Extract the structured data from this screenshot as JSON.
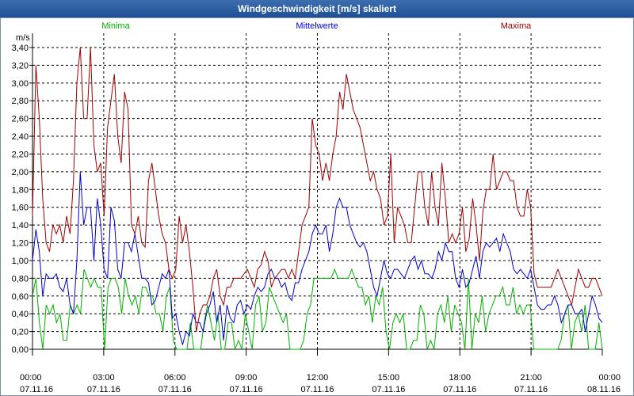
{
  "window": {
    "title": "Windgeschwindigkeit [m/s] skaliert"
  },
  "colors": {
    "minima": "#00b000",
    "mittelwerte": "#0000cc",
    "maxima": "#a00000",
    "grid": "#000000"
  },
  "chart_data": {
    "type": "line",
    "title": "Windgeschwindigkeit [m/s] skaliert",
    "ylabel": "m/s",
    "xlabel": "",
    "ylim": [
      0,
      3.4
    ],
    "xlim": [
      0,
      24
    ],
    "y_ticks": [
      "0,00",
      "0,20",
      "0,40",
      "0,60",
      "0,80",
      "1,00",
      "1,20",
      "1,40",
      "1,60",
      "1,80",
      "2,00",
      "2,20",
      "2,40",
      "2,60",
      "2,80",
      "3,00",
      "3,20",
      "3,40"
    ],
    "x_ticks": [
      {
        "time": "00:00",
        "date": "07.11.16"
      },
      {
        "time": "03:00",
        "date": "07.11.16"
      },
      {
        "time": "06:00",
        "date": "07.11.16"
      },
      {
        "time": "09:00",
        "date": "07.11.16"
      },
      {
        "time": "12:00",
        "date": "07.11.16"
      },
      {
        "time": "15:00",
        "date": "07.11.16"
      },
      {
        "time": "18:00",
        "date": "07.11.16"
      },
      {
        "time": "21:00",
        "date": "07.11.16"
      },
      {
        "time": "00:00",
        "date": "08.11.16"
      }
    ],
    "legend": [
      "Minima",
      "Mittelwerte",
      "Maxima"
    ],
    "series": [
      {
        "name": "Minima",
        "values": [
          0.6,
          0.8,
          0.3,
          0.0,
          0.5,
          0.4,
          0.5,
          0.3,
          0.4,
          0.1,
          0.1,
          0.5,
          0.4,
          0.5,
          0.4,
          0.9,
          0.8,
          0.7,
          0.8,
          0.7,
          0.7,
          0.0,
          0.7,
          0.8,
          0.8,
          0.7,
          0.4,
          0.8,
          0.6,
          0.5,
          0.6,
          0.4,
          0.7,
          0.7,
          0.6,
          0.6,
          0.4,
          0.4,
          0.2,
          0.6,
          0.7,
          0.1,
          0.0,
          0.0,
          0.0,
          0.0,
          0.3,
          0.0,
          0.0,
          0.0,
          0.3,
          0.5,
          0.3,
          0.1,
          0.4,
          0.0,
          0.0,
          0.3,
          0.3,
          0.0,
          0.1,
          0.0,
          0.4,
          0.2,
          0.0,
          0.5,
          0.6,
          0.2,
          0.3,
          0.7,
          0.6,
          0.5,
          0.4,
          0.3,
          0.4,
          0.0,
          0.0,
          0.0,
          0.0,
          0.1,
          0.4,
          0.5,
          0.8,
          0.8,
          0.8,
          0.8,
          0.8,
          0.8,
          0.9,
          0.8,
          0.8,
          0.8,
          0.8,
          0.9,
          0.8,
          0.7,
          0.7,
          0.5,
          0.6,
          0.3,
          0.6,
          0.5,
          0.7,
          0.2,
          0.0,
          0.3,
          0.4,
          0.3,
          0.4,
          0.0,
          0.0,
          0.1,
          0.1,
          0.5,
          0.4,
          0.0,
          0.1,
          0.0,
          0.4,
          0.5,
          0.3,
          0.6,
          0.2,
          0.5,
          0.4,
          0.3,
          0.0,
          0.8,
          0.0,
          0.4,
          0.3,
          0.6,
          0.2,
          0.4,
          0.5,
          0.6,
          0.6,
          0.7,
          0.5,
          0.5,
          0.7,
          0.4,
          0.5,
          0.4,
          0.5,
          0.5,
          0.0,
          0.0,
          0.0,
          0.0,
          0.0,
          0.0,
          0.0,
          0.0,
          0.1,
          0.4,
          0.5,
          0.0,
          0.3,
          0.4,
          0.2,
          0.5,
          0.0,
          0.0,
          0.0,
          0.3,
          0.0
        ]
      },
      {
        "name": "Mittelwerte",
        "values": [
          1.0,
          1.35,
          1.1,
          0.6,
          0.85,
          0.8,
          0.8,
          0.85,
          0.7,
          0.65,
          0.8,
          0.5,
          0.4,
          1.0,
          2.0,
          1.4,
          1.6,
          1.6,
          1.0,
          1.7,
          1.4,
          0.9,
          0.8,
          1.6,
          1.45,
          0.9,
          0.8,
          1.2,
          1.2,
          1.1,
          1.3,
          1.05,
          0.8,
          0.8,
          0.75,
          0.5,
          0.55,
          0.7,
          0.85,
          0.8,
          0.9,
          0.35,
          0.4,
          0.2,
          0.05,
          0.2,
          0.15,
          0.4,
          0.3,
          0.3,
          0.2,
          0.4,
          0.5,
          0.65,
          0.3,
          0.5,
          0.1,
          0.5,
          0.35,
          0.3,
          0.5,
          0.55,
          0.4,
          0.5,
          0.45,
          0.6,
          0.7,
          0.65,
          0.7,
          0.85,
          0.9,
          0.8,
          0.8,
          0.7,
          0.75,
          0.6,
          0.55,
          0.75,
          0.75,
          0.9,
          1.0,
          1.1,
          1.3,
          1.4,
          1.3,
          1.3,
          1.4,
          1.1,
          1.3,
          1.6,
          1.7,
          1.6,
          1.6,
          1.4,
          1.3,
          1.2,
          1.15,
          1.2,
          1.1,
          0.9,
          0.7,
          0.6,
          0.8,
          1.0,
          0.85,
          0.8,
          0.9,
          0.9,
          0.85,
          0.8,
          0.9,
          1.0,
          1.05,
          0.9,
          1.0,
          0.85,
          0.85,
          0.8,
          0.9,
          1.1,
          1.0,
          1.2,
          1.1,
          1.1,
          0.8,
          0.7,
          0.9,
          0.7,
          0.75,
          0.9,
          1.05,
          0.8,
          1.1,
          1.2,
          1.15,
          1.2,
          1.25,
          1.1,
          1.3,
          1.2,
          1.1,
          0.9,
          0.85,
          0.9,
          0.85,
          0.8,
          0.9,
          0.7,
          0.5,
          0.45,
          0.45,
          0.5,
          0.5,
          0.6,
          0.5,
          0.3,
          0.4,
          0.5,
          0.5,
          0.4,
          0.4,
          0.45,
          0.2,
          0.4,
          0.6,
          0.5,
          0.35,
          0.3
        ]
      },
      {
        "name": "Maxima",
        "values": [
          1.5,
          3.2,
          2.6,
          1.7,
          1.2,
          1.1,
          1.4,
          1.3,
          1.4,
          1.2,
          1.5,
          1.3,
          1.9,
          3.0,
          3.4,
          2.6,
          2.6,
          3.4,
          2.3,
          2.0,
          2.1,
          1.5,
          2.5,
          2.8,
          3.1,
          2.4,
          2.1,
          2.9,
          2.7,
          1.4,
          1.3,
          1.5,
          1.2,
          1.15,
          1.9,
          2.1,
          1.8,
          1.5,
          1.3,
          1.2,
          0.9,
          0.8,
          0.9,
          1.5,
          1.2,
          1.4,
          1.1,
          0.7,
          0.2,
          0.4,
          0.5,
          0.5,
          0.6,
          0.8,
          0.9,
          0.6,
          0.5,
          0.7,
          0.7,
          0.8,
          0.8,
          0.8,
          0.85,
          0.9,
          0.8,
          0.7,
          0.9,
          0.95,
          1.1,
          1.0,
          0.7,
          0.8,
          0.85,
          0.9,
          0.9,
          0.8,
          0.9,
          0.8,
          1.1,
          1.4,
          1.5,
          1.6,
          2.6,
          2.3,
          2.2,
          1.9,
          2.1,
          1.9,
          2.2,
          2.4,
          2.9,
          2.7,
          3.1,
          2.9,
          2.7,
          2.6,
          2.5,
          2.3,
          2.1,
          1.9,
          2.0,
          1.8,
          1.7,
          1.4,
          1.5,
          2.2,
          1.2,
          1.6,
          1.5,
          1.4,
          1.2,
          1.2,
          1.6,
          2.0,
          2.0,
          1.6,
          1.4,
          2.0,
          1.6,
          1.4,
          2.1,
          1.7,
          1.2,
          1.3,
          1.2,
          1.3,
          1.6,
          1.1,
          1.25,
          1.7,
          1.4,
          1.0,
          1.55,
          1.8,
          1.8,
          2.2,
          1.8,
          1.9,
          2.0,
          2.0,
          1.9,
          1.9,
          1.6,
          1.5,
          1.5,
          1.8,
          1.6,
          0.85,
          0.7,
          0.7,
          0.7,
          0.7,
          0.7,
          0.8,
          0.9,
          0.8,
          0.7,
          0.6,
          0.5,
          0.7,
          0.9,
          0.8,
          0.7,
          0.7,
          0.8,
          0.8,
          0.7,
          0.6
        ]
      }
    ]
  }
}
